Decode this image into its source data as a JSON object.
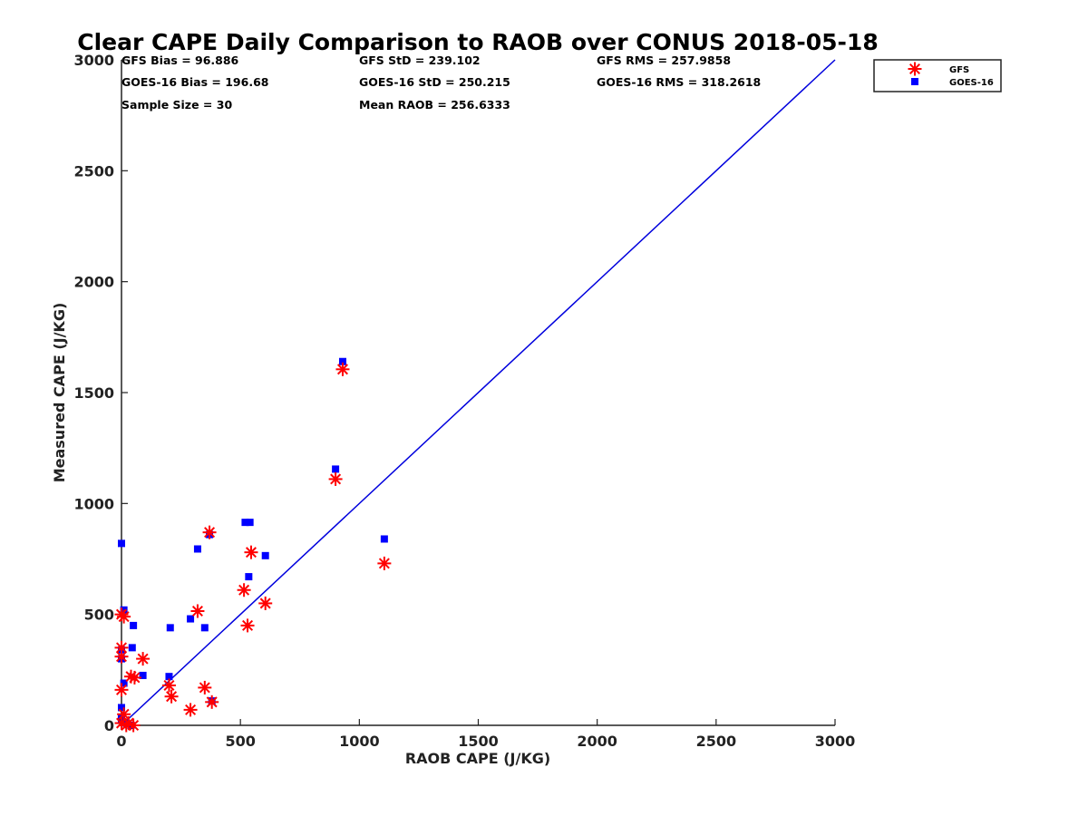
{
  "chart_data": {
    "type": "scatter",
    "title": "Clear CAPE Daily Comparison to RAOB over CONUS 2018-05-18",
    "xlabel": "RAOB CAPE (J/KG)",
    "ylabel": "Measured CAPE (J/KG)",
    "xlim": [
      0,
      3000
    ],
    "ylim": [
      0,
      3000
    ],
    "xticks": [
      "0",
      "500",
      "1000",
      "1500",
      "2000",
      "2500",
      "3000"
    ],
    "yticks": [
      "0",
      "500",
      "1000",
      "1500",
      "2000",
      "2500",
      "3000"
    ],
    "grid": false,
    "legend_position": "top-right",
    "stats": [
      "GFS Bias = 96.886",
      "GFS StD = 239.102",
      "GFS RMS = 257.9858",
      "GOES-16 Bias = 196.68",
      "GOES-16 StD = 250.215",
      "GOES-16 RMS = 318.2618",
      "Sample Size = 30",
      "Mean RAOB = 256.6333"
    ],
    "one_to_one_line": {
      "from": [
        0,
        0
      ],
      "to": [
        3000,
        3000
      ],
      "color": "#0000dd"
    },
    "series": [
      {
        "name": "GFS",
        "marker": "asterisk",
        "color": "#ff0000",
        "points": [
          [
            0,
            500
          ],
          [
            10,
            490
          ],
          [
            0,
            350
          ],
          [
            0,
            310
          ],
          [
            0,
            160
          ],
          [
            0,
            10
          ],
          [
            10,
            50
          ],
          [
            20,
            0
          ],
          [
            30,
            10
          ],
          [
            50,
            0
          ],
          [
            40,
            220
          ],
          [
            55,
            215
          ],
          [
            90,
            300
          ],
          [
            200,
            180
          ],
          [
            210,
            130
          ],
          [
            290,
            70
          ],
          [
            350,
            170
          ],
          [
            380,
            105
          ],
          [
            320,
            515
          ],
          [
            370,
            870
          ],
          [
            515,
            610
          ],
          [
            530,
            450
          ],
          [
            545,
            780
          ],
          [
            605,
            550
          ],
          [
            900,
            1110
          ],
          [
            930,
            1605
          ],
          [
            1105,
            730
          ]
        ]
      },
      {
        "name": "GOES-16",
        "marker": "square",
        "color": "#0000ff",
        "points": [
          [
            0,
            820
          ],
          [
            10,
            520
          ],
          [
            0,
            340
          ],
          [
            0,
            300
          ],
          [
            0,
            80
          ],
          [
            10,
            190
          ],
          [
            0,
            30
          ],
          [
            20,
            10
          ],
          [
            40,
            0
          ],
          [
            45,
            350
          ],
          [
            50,
            450
          ],
          [
            90,
            225
          ],
          [
            200,
            220
          ],
          [
            205,
            440
          ],
          [
            290,
            480
          ],
          [
            320,
            795
          ],
          [
            350,
            440
          ],
          [
            370,
            860
          ],
          [
            380,
            110
          ],
          [
            520,
            915
          ],
          [
            540,
            915
          ],
          [
            535,
            670
          ],
          [
            605,
            765
          ],
          [
            900,
            1155
          ],
          [
            930,
            1640
          ],
          [
            1105,
            840
          ]
        ]
      }
    ]
  }
}
